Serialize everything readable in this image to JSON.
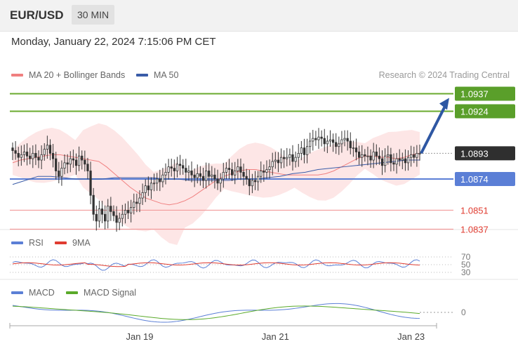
{
  "header": {
    "symbol": "EUR/USD",
    "timeframe": "30 MIN"
  },
  "datetime": "Monday, January 22, 2024 7:15:06 PM CET",
  "legend_main": [
    {
      "label": "MA 20 + Bollinger Bands",
      "color": "#f08080"
    },
    {
      "label": "MA 50",
      "color": "#3a5ca8"
    }
  ],
  "credit": "Research © 2024 Trading Central",
  "legend_rsi": [
    {
      "label": "RSI",
      "color": "#5b7fd6"
    },
    {
      "label": "9MA",
      "color": "#e03c31"
    }
  ],
  "legend_macd": [
    {
      "label": "MACD",
      "color": "#5b7fd6"
    },
    {
      "label": "MACD Signal",
      "color": "#5aaa2a"
    }
  ],
  "colors": {
    "green": "#6aaa2e",
    "blue": "#5b7fd6",
    "red": "#f08080",
    "dark": "#333333",
    "arrow": "#2e57a3",
    "bb": "#fde3e3"
  },
  "chart_data": {
    "type": "candlestick",
    "y_range": [
      1.083,
      1.0945
    ],
    "x_ticks": [
      {
        "label": "Jan 19",
        "index": 44
      },
      {
        "label": "Jan 21",
        "index": 91
      },
      {
        "label": "Jan 23",
        "index": 138
      }
    ],
    "levels": [
      {
        "value": 1.0937,
        "label": "1.0937",
        "style": "green-box"
      },
      {
        "value": 1.0924,
        "label": "1.0924",
        "style": "green-box"
      },
      {
        "value": 1.0893,
        "label": "1.0893",
        "style": "dark-box"
      },
      {
        "value": 1.0874,
        "label": "1.0874",
        "style": "blue-box"
      },
      {
        "value": 1.0851,
        "label": "1.0851",
        "style": "red-text"
      },
      {
        "value": 1.0837,
        "label": "1.0837",
        "style": "red-text"
      }
    ],
    "closes": [
      1.0895,
      1.0893,
      1.089,
      1.0892,
      1.0894,
      1.0891,
      1.0889,
      1.0893,
      1.089,
      1.0888,
      1.0892,
      1.0896,
      1.0899,
      1.0893,
      1.0889,
      1.088,
      1.0876,
      1.0882,
      1.0886,
      1.0885,
      1.0889,
      1.0888,
      1.0884,
      1.0891,
      1.0888,
      1.0885,
      1.088,
      1.0862,
      1.0848,
      1.0843,
      1.0852,
      1.0848,
      1.0843,
      1.0854,
      1.085,
      1.0847,
      1.0842,
      1.0845,
      1.0848,
      1.0851,
      1.0849,
      1.0853,
      1.0857,
      1.0856,
      1.086,
      1.0864,
      1.0869,
      1.0866,
      1.0871,
      1.0871,
      1.0874,
      1.0872,
      1.0877,
      1.0879,
      1.0883,
      1.0882,
      1.088,
      1.0885,
      1.0884,
      1.0882,
      1.0879,
      1.088,
      1.0877,
      1.0875,
      1.0878,
      1.0876,
      1.0873,
      1.088,
      1.0876,
      1.0877,
      1.0874,
      1.0871,
      1.0874,
      1.0879,
      1.0882,
      1.0881,
      1.0877,
      1.088,
      1.0883,
      1.0879,
      1.0876,
      1.0874,
      1.0869,
      1.0873,
      1.0872,
      1.0876,
      1.088,
      1.0879,
      1.0881,
      1.0883,
      1.0887,
      1.0888,
      1.0886,
      1.089,
      1.0889,
      1.089,
      1.0892,
      1.0887,
      1.089,
      1.0893,
      1.0897,
      1.0892,
      1.0898,
      1.0902,
      1.0904,
      1.0903,
      1.0905,
      1.0904,
      1.09,
      1.0902,
      1.0903,
      1.0901,
      1.0898,
      1.09,
      1.0903,
      1.0904,
      1.0902,
      1.0897,
      1.0897,
      1.0894,
      1.089,
      1.0892,
      1.0891,
      1.0891,
      1.0888,
      1.0894,
      1.0891,
      1.0889,
      1.0884,
      1.0891,
      1.0892,
      1.0886,
      1.0885,
      1.0889,
      1.0888,
      1.0889,
      1.0886,
      1.089,
      1.0892,
      1.089,
      1.0893,
      1.0893
    ],
    "forecast": {
      "from": 1.0893,
      "to": 1.0937
    },
    "ma20": [
      1.0886,
      1.0888,
      1.0889,
      1.089,
      1.0891,
      1.0892,
      1.0892,
      1.0891,
      1.089,
      1.0889,
      1.0888,
      1.0887,
      1.0883,
      1.0878,
      1.0873,
      1.0868,
      1.0864,
      1.086,
      1.0858,
      1.0856,
      1.0855,
      1.0856,
      1.0858,
      1.0861,
      1.0865,
      1.0869,
      1.0873,
      1.0876,
      1.0878,
      1.088,
      1.0881,
      1.0881,
      1.088,
      1.0879,
      1.0878,
      1.0877,
      1.0877,
      1.0877,
      1.0877,
      1.0877,
      1.0878,
      1.088,
      1.0883,
      1.0886,
      1.0889,
      1.0891,
      1.0891,
      1.089,
      1.089,
      1.0889,
      1.089,
      1.0892,
      1.0893
    ],
    "ma50": [
      1.087,
      1.0873,
      1.0876,
      1.0876,
      1.0875,
      1.0874,
      1.0874,
      1.0874,
      1.0875,
      1.0875,
      1.0875,
      1.0875,
      1.0874,
      1.0874,
      1.0873,
      1.0873,
      1.0873,
      1.0873,
      1.0874,
      1.0874,
      1.0875,
      1.0876,
      1.0878,
      1.0879,
      1.0881,
      1.0882,
      1.0883,
      1.0884,
      1.0885,
      1.0886,
      1.0887,
      1.0888,
      1.0888
    ],
    "rsi_ticks": [
      "70",
      "50",
      "30"
    ],
    "macd_tick": "0"
  }
}
